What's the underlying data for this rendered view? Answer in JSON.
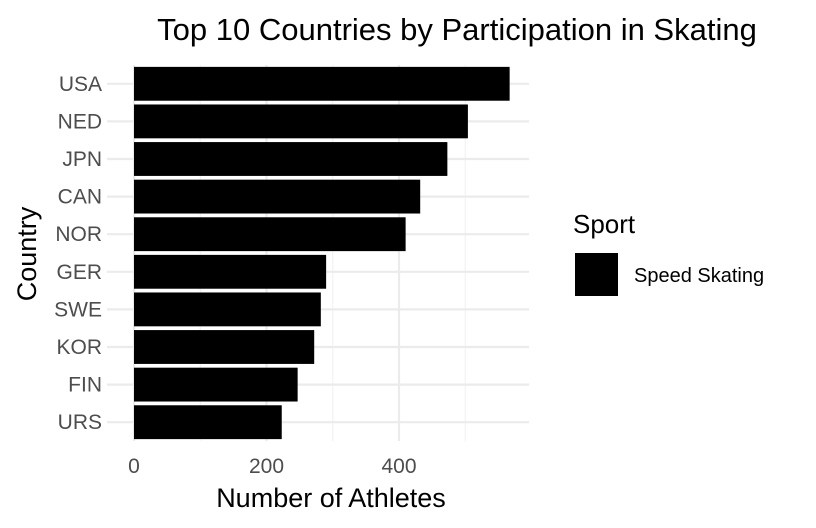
{
  "chart_data": {
    "type": "bar",
    "orientation": "horizontal",
    "title": "Top 10 Countries by Participation in Skating",
    "xlabel": "Number of Athletes",
    "ylabel": "Country",
    "categories": [
      "USA",
      "NED",
      "JPN",
      "CAN",
      "NOR",
      "GER",
      "SWE",
      "KOR",
      "FIN",
      "URS"
    ],
    "series": [
      {
        "name": "Speed Skating",
        "values": [
          567,
          504,
          473,
          432,
          410,
          290,
          282,
          272,
          247,
          223
        ],
        "color": "#000000"
      }
    ],
    "xlim": [
      0,
      595
    ],
    "x_ticks": [
      0,
      200,
      400
    ],
    "grid": true,
    "legend": {
      "title": "Sport",
      "position": "right",
      "entries": [
        "Speed Skating"
      ]
    }
  }
}
